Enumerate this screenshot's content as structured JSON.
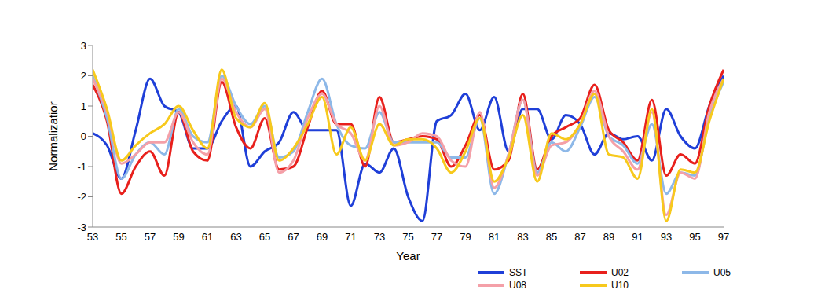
{
  "chart_data": {
    "type": "line",
    "x_label": "Year",
    "y_label": "Normalizatior",
    "x": [
      53,
      54,
      55,
      56,
      57,
      58,
      59,
      60,
      61,
      62,
      63,
      64,
      65,
      66,
      67,
      68,
      69,
      70,
      71,
      72,
      73,
      74,
      75,
      76,
      77,
      78,
      79,
      80,
      81,
      82,
      83,
      84,
      85,
      86,
      87,
      88,
      89,
      90,
      91,
      92,
      93,
      94,
      95,
      96,
      97
    ],
    "xlim": [
      53,
      97
    ],
    "xticks": [
      53,
      55,
      57,
      59,
      61,
      63,
      65,
      67,
      69,
      71,
      73,
      75,
      77,
      79,
      81,
      83,
      85,
      87,
      89,
      91,
      93,
      95,
      97
    ],
    "ylim": [
      -3,
      3
    ],
    "yticks": [
      -3,
      -2,
      -1,
      0,
      1,
      2,
      3
    ],
    "grid": false,
    "legend": "bottom right",
    "series": [
      {
        "name": "SST",
        "color": "#1f3fd8",
        "values": [
          0.1,
          -0.3,
          -1.4,
          0.2,
          1.9,
          1.0,
          0.8,
          -0.4,
          -0.4,
          0.5,
          1.0,
          -1.0,
          -0.5,
          -0.2,
          0.8,
          0.2,
          0.2,
          0.2,
          -2.3,
          -0.9,
          -1.2,
          -0.4,
          -2.0,
          -2.8,
          0.5,
          0.7,
          1.4,
          0.2,
          1.3,
          -0.5,
          0.9,
          0.9,
          -0.1,
          0.7,
          0.4,
          -0.6,
          0.1,
          -0.1,
          0.0,
          -0.8,
          0.9,
          0.0,
          -0.4,
          1.0,
          2.0
        ]
      },
      {
        "name": "U02",
        "color": "#e8201c",
        "values": [
          1.7,
          0.5,
          -1.9,
          -1.0,
          -0.5,
          -1.3,
          0.8,
          -0.5,
          -0.8,
          1.8,
          0.3,
          -0.4,
          0.6,
          -1.1,
          -1.0,
          0.3,
          1.5,
          0.4,
          0.4,
          -1.0,
          1.3,
          -0.2,
          -0.1,
          0.0,
          -0.1,
          -1.0,
          -0.3,
          0.7,
          -1.1,
          -0.8,
          1.4,
          -1.1,
          0.0,
          0.3,
          0.6,
          1.7,
          0.2,
          -0.2,
          -0.8,
          1.2,
          -1.3,
          -0.6,
          -0.9,
          1.0,
          2.2
        ]
      },
      {
        "name": "U05",
        "color": "#8db8e8",
        "values": [
          2.0,
          0.6,
          -1.4,
          -0.6,
          -0.2,
          -0.6,
          0.9,
          0.0,
          -0.2,
          2.0,
          1.0,
          0.4,
          1.0,
          -0.7,
          -0.5,
          0.8,
          1.9,
          0.4,
          -0.3,
          -0.4,
          0.8,
          -0.2,
          -0.2,
          -0.2,
          -0.2,
          -0.7,
          -0.7,
          0.6,
          -1.9,
          -0.6,
          1.2,
          -1.2,
          -0.2,
          -0.5,
          0.3,
          1.3,
          0.0,
          -0.3,
          -0.9,
          0.4,
          -1.9,
          -1.2,
          -1.3,
          0.6,
          1.8
        ]
      },
      {
        "name": "U08",
        "color": "#f4a0a8",
        "values": [
          1.9,
          0.8,
          -0.9,
          -0.6,
          -0.2,
          -0.2,
          0.8,
          -0.2,
          -0.6,
          1.9,
          0.8,
          0.3,
          0.9,
          -1.2,
          -0.8,
          0.6,
          1.4,
          0.4,
          0.1,
          -0.8,
          1.0,
          -0.3,
          -0.2,
          0.1,
          0.0,
          -0.8,
          -1.0,
          0.8,
          -1.7,
          -0.6,
          1.2,
          -1.3,
          -0.3,
          -0.2,
          0.4,
          1.5,
          0.0,
          -0.5,
          -1.1,
          0.8,
          -2.6,
          -1.2,
          -1.4,
          0.8,
          1.9
        ]
      },
      {
        "name": "U10",
        "color": "#f7c91c",
        "values": [
          2.2,
          0.9,
          -0.8,
          -0.3,
          0.1,
          0.4,
          1.0,
          0.2,
          -0.4,
          2.2,
          0.6,
          0.3,
          1.1,
          -0.8,
          -0.4,
          0.4,
          1.3,
          -0.6,
          0.3,
          -0.8,
          0.4,
          -0.3,
          -0.1,
          -0.1,
          -0.4,
          -1.2,
          -0.5,
          0.6,
          -1.5,
          -0.7,
          0.7,
          -1.5,
          0.1,
          -0.1,
          0.4,
          1.4,
          -0.6,
          -0.7,
          -1.4,
          0.9,
          -2.8,
          -1.1,
          -1.2,
          0.5,
          1.9
        ]
      }
    ]
  }
}
